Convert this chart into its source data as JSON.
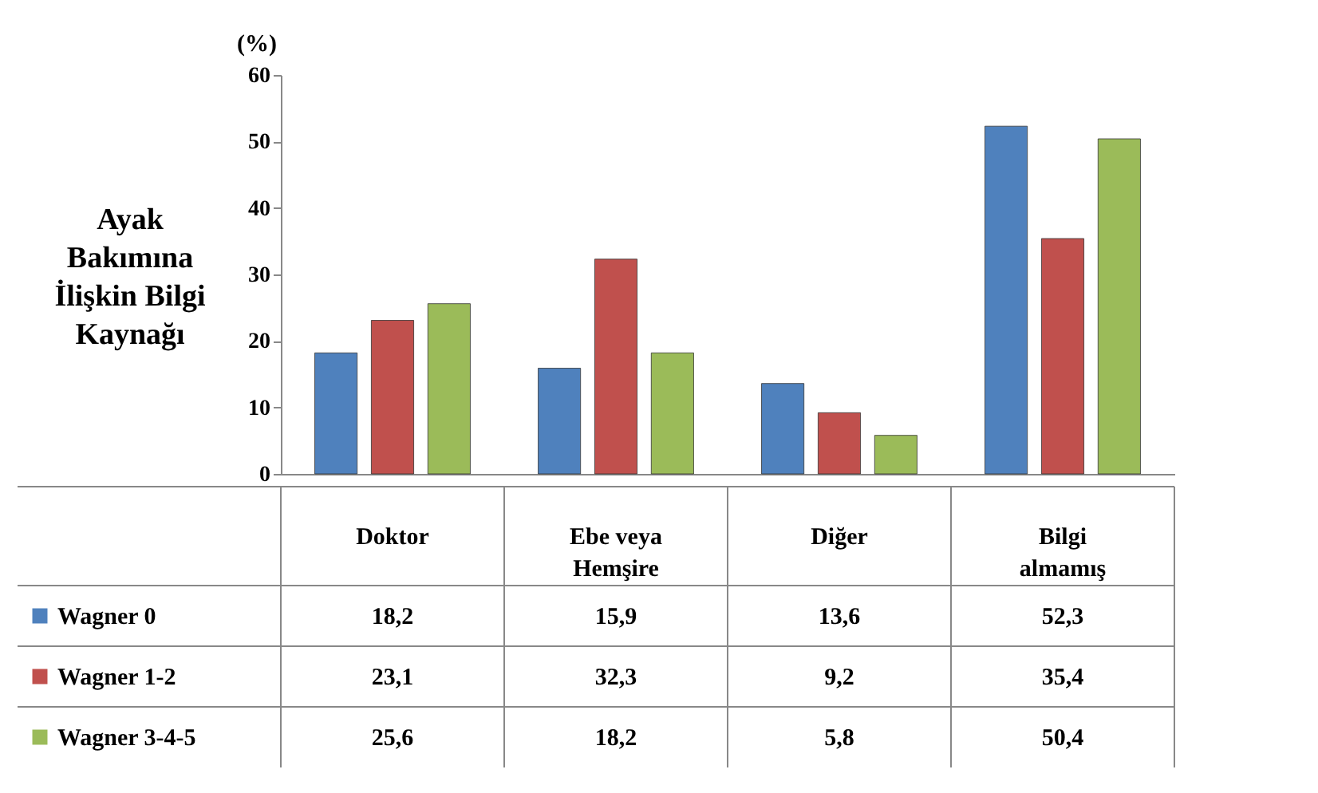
{
  "chart_data": {
    "type": "bar",
    "ylabel": "Ayak\nBakımına\nİlişkin Bilgi\nKaynağı",
    "annotations": [
      "(%)"
    ],
    "categories": [
      "Doktor",
      "Ebe veya Hemşire",
      "Diğer",
      "Bilgi almamış"
    ],
    "series": [
      {
        "name": "Wagner 0",
        "color": "#4f81bd",
        "values": [
          18.2,
          15.9,
          13.6,
          52.3
        ],
        "value_labels": [
          "18,2",
          "15,9",
          "13,6",
          "52,3"
        ]
      },
      {
        "name": "Wagner 1-2",
        "color": "#c0504d",
        "values": [
          23.1,
          32.3,
          9.2,
          35.4
        ],
        "value_labels": [
          "23,1",
          "32,3",
          "9,2",
          "35,4"
        ]
      },
      {
        "name": "Wagner 3-4-5",
        "color": "#9bbb59",
        "values": [
          25.6,
          18.2,
          5.8,
          50.4
        ],
        "value_labels": [
          "25,6",
          "18,2",
          "5,8",
          "50,4"
        ]
      }
    ],
    "ylim": [
      0,
      60
    ],
    "yticks": [
      0,
      10,
      20,
      30,
      40,
      50,
      60
    ],
    "grid": false,
    "legend": "bottom left"
  }
}
